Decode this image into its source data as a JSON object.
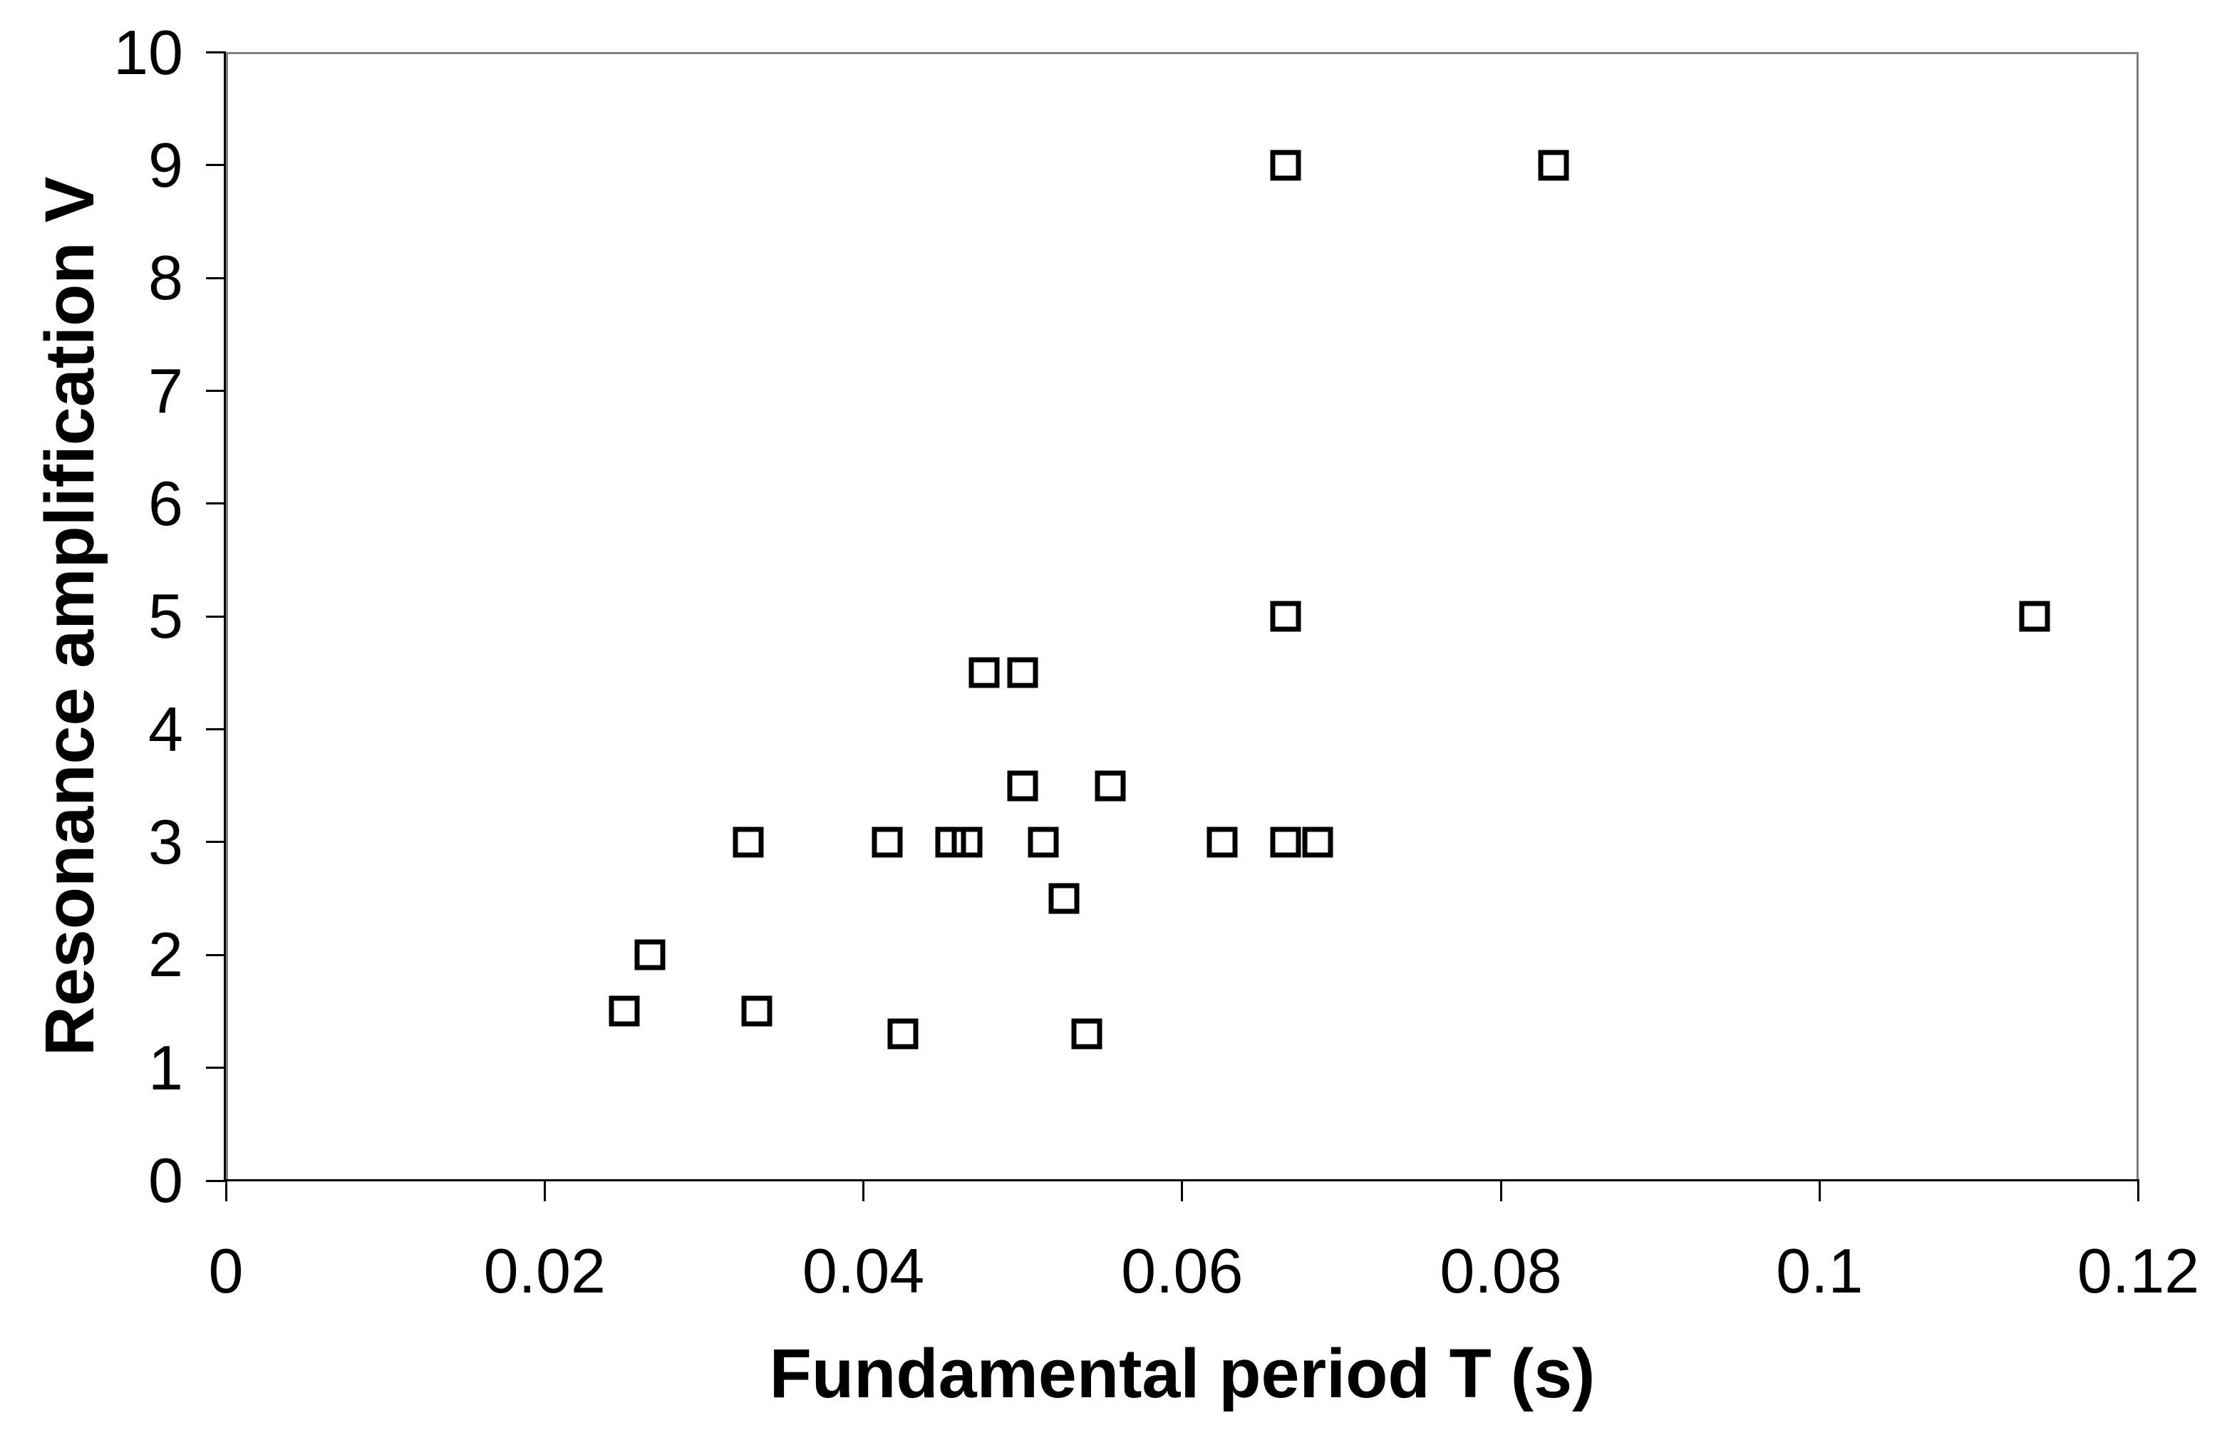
{
  "chart_data": {
    "type": "scatter",
    "title": "",
    "xlabel": "Fundamental period T (s)",
    "ylabel": "Resonance amplification V",
    "xlim": [
      0,
      0.12
    ],
    "ylim": [
      0,
      10
    ],
    "grid": false,
    "legend_position": "none",
    "marker_style": "open-square",
    "marker_color": "#000000",
    "plot_border_color": "#808080",
    "axis_color": "#000000",
    "x_ticks": [
      0,
      0.02,
      0.04,
      0.06,
      0.08,
      0.1,
      0.12
    ],
    "x_tick_labels": [
      "0",
      "0.02",
      "0.04",
      "0.06",
      "0.08",
      "0.1",
      "0.12"
    ],
    "y_ticks": [
      0,
      1,
      2,
      3,
      4,
      5,
      6,
      7,
      8,
      9,
      10
    ],
    "y_tick_labels": [
      "0",
      "1",
      "2",
      "3",
      "4",
      "5",
      "6",
      "7",
      "8",
      "9",
      "10"
    ],
    "points": [
      {
        "T": 0.0665,
        "V": 9
      },
      {
        "T": 0.0833,
        "V": 9
      },
      {
        "T": 0.0665,
        "V": 5
      },
      {
        "T": 0.1135,
        "V": 5
      },
      {
        "T": 0.0476,
        "V": 4.5
      },
      {
        "T": 0.05,
        "V": 4.5
      },
      {
        "T": 0.05,
        "V": 3.5
      },
      {
        "T": 0.0555,
        "V": 3.5
      },
      {
        "T": 0.0328,
        "V": 3
      },
      {
        "T": 0.0415,
        "V": 3
      },
      {
        "T": 0.0455,
        "V": 3
      },
      {
        "T": 0.0465,
        "V": 3
      },
      {
        "T": 0.0513,
        "V": 3
      },
      {
        "T": 0.0625,
        "V": 3
      },
      {
        "T": 0.0665,
        "V": 3
      },
      {
        "T": 0.0685,
        "V": 3
      },
      {
        "T": 0.0526,
        "V": 2.5
      },
      {
        "T": 0.0266,
        "V": 2
      },
      {
        "T": 0.025,
        "V": 1.5
      },
      {
        "T": 0.0333,
        "V": 1.5
      },
      {
        "T": 0.0425,
        "V": 1.3
      },
      {
        "T": 0.054,
        "V": 1.3
      }
    ]
  }
}
